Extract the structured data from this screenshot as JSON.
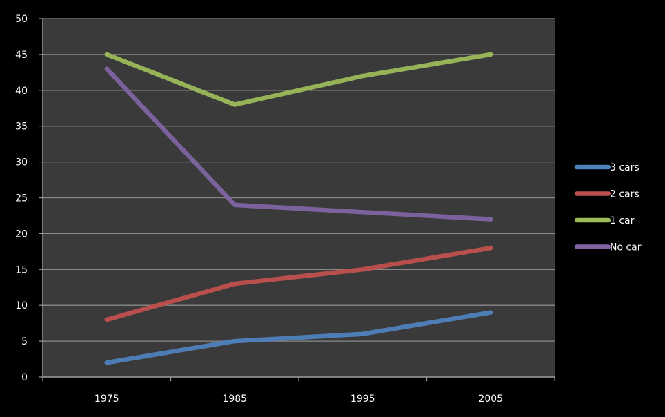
{
  "chart_data": {
    "type": "line",
    "title": "",
    "xlabel": "",
    "ylabel": "",
    "x": [
      "1975",
      "1985",
      "1995",
      "2005"
    ],
    "ylim": [
      0,
      50
    ],
    "yticks": [
      0,
      5,
      10,
      15,
      20,
      25,
      30,
      35,
      40,
      45,
      50
    ],
    "grid": true,
    "legend_position": "right",
    "background_color": "#000000",
    "plot_background_color": "#3a3a3a",
    "gridline_color": "#8a8a8a",
    "text_color": "#ffffff",
    "series": [
      {
        "name": "3 cars",
        "color": "#4f81bd",
        "values": [
          2,
          5,
          6,
          9
        ]
      },
      {
        "name": "2 cars",
        "color": "#c0504d",
        "values": [
          8,
          13,
          15,
          18
        ]
      },
      {
        "name": "1 car",
        "color": "#9bbb59",
        "values": [
          45,
          38,
          42,
          45
        ]
      },
      {
        "name": "No car",
        "color": "#8064a2",
        "values": [
          43,
          24,
          23,
          22
        ]
      }
    ]
  }
}
